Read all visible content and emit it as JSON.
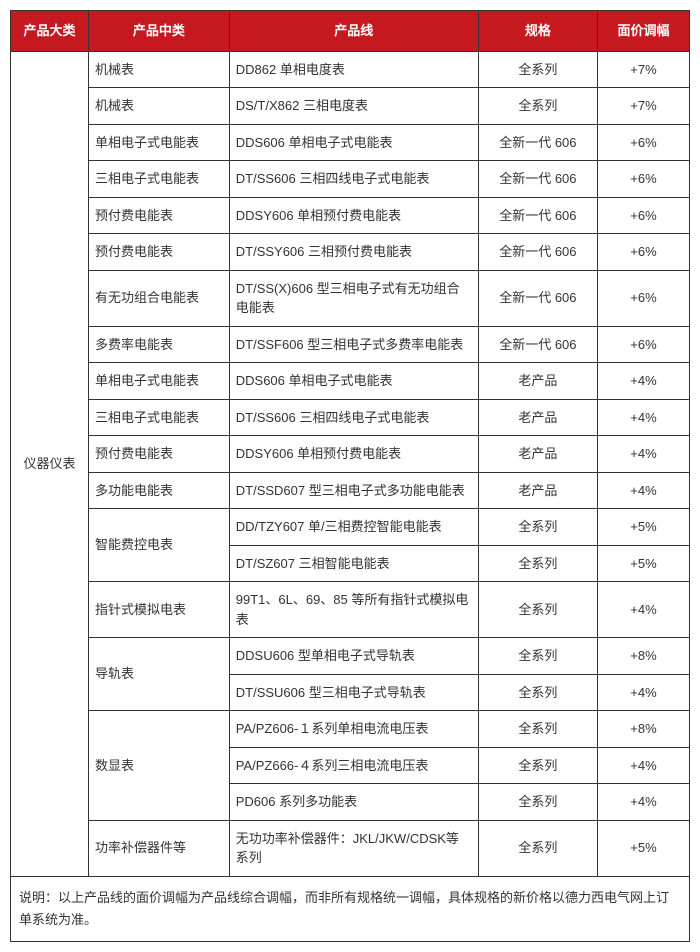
{
  "headers": {
    "category": "产品大类",
    "mid": "产品中类",
    "line": "产品线",
    "spec": "规格",
    "adj": "面价调幅"
  },
  "category_label": "仪器仪表",
  "rows": [
    {
      "mid": "机械表",
      "line": "DD862 单相电度表",
      "spec": "全系列",
      "adj": "+7%",
      "mid_rowspan": 1
    },
    {
      "mid": "机械表",
      "line": "DS/T/X862 三相电度表",
      "spec": "全系列",
      "adj": "+7%",
      "mid_rowspan": 1
    },
    {
      "mid": "单相电子式电能表",
      "line": "DDS606 单相电子式电能表",
      "spec": "全新一代 606",
      "adj": "+6%",
      "mid_rowspan": 1
    },
    {
      "mid": "三相电子式电能表",
      "line": "DT/SS606 三相四线电子式电能表",
      "spec": "全新一代 606",
      "adj": "+6%",
      "mid_rowspan": 1
    },
    {
      "mid": "预付费电能表",
      "line": "DDSY606 单相预付费电能表",
      "spec": "全新一代 606",
      "adj": "+6%",
      "mid_rowspan": 1
    },
    {
      "mid": "预付费电能表",
      "line": "DT/SSY606 三相预付费电能表",
      "spec": "全新一代 606",
      "adj": "+6%",
      "mid_rowspan": 1
    },
    {
      "mid": "有无功组合电能表",
      "line": "DT/SS(X)606 型三相电子式有无功组合电能表",
      "spec": "全新一代 606",
      "adj": "+6%",
      "mid_rowspan": 1
    },
    {
      "mid": "多费率电能表",
      "line": "DT/SSF606 型三相电子式多费率电能表",
      "spec": "全新一代 606",
      "adj": "+6%",
      "mid_rowspan": 1
    },
    {
      "mid": "单相电子式电能表",
      "line": "DDS606 单相电子式电能表",
      "spec": "老产品",
      "adj": "+4%",
      "mid_rowspan": 1
    },
    {
      "mid": "三相电子式电能表",
      "line": "DT/SS606 三相四线电子式电能表",
      "spec": "老产品",
      "adj": "+4%",
      "mid_rowspan": 1
    },
    {
      "mid": "预付费电能表",
      "line": "DDSY606 单相预付费电能表",
      "spec": "老产品",
      "adj": "+4%",
      "mid_rowspan": 1
    },
    {
      "mid": "多功能电能表",
      "line": "DT/SSD607 型三相电子式多功能电能表",
      "spec": "老产品",
      "adj": "+4%",
      "mid_rowspan": 1
    },
    {
      "mid": "智能费控电表",
      "line": "DD/TZY607 单/三相费控智能电能表",
      "spec": "全系列",
      "adj": "+5%",
      "mid_rowspan": 2
    },
    {
      "mid": null,
      "line": "DT/SZ607 三相智能电能表",
      "spec": "全系列",
      "adj": "+5%"
    },
    {
      "mid": "指针式模拟电表",
      "line": "99T1、6L、69、85 等所有指针式模拟电表",
      "spec": "全系列",
      "adj": "+4%",
      "mid_rowspan": 1
    },
    {
      "mid": "导轨表",
      "line": "DDSU606 型单相电子式导轨表",
      "spec": "全系列",
      "adj": "+8%",
      "mid_rowspan": 2
    },
    {
      "mid": null,
      "line": "DT/SSU606 型三相电子式导轨表",
      "spec": "全系列",
      "adj": "+4%"
    },
    {
      "mid": "数显表",
      "line": "PA/PZ606-１系列单相电流电压表",
      "spec": "全系列",
      "adj": "+8%",
      "mid_rowspan": 3
    },
    {
      "mid": null,
      "line": "PA/PZ666-４系列三相电流电压表",
      "spec": "全系列",
      "adj": "+4%"
    },
    {
      "mid": null,
      "line": "PD606 系列多功能表",
      "spec": "全系列",
      "adj": "+4%"
    },
    {
      "mid": "功率补偿器件等",
      "line": "无功功率补偿器件：JKL/JKW/CDSK等系列",
      "spec": "全系列",
      "adj": "+5%",
      "mid_rowspan": 1
    }
  ],
  "note": "说明：以上产品线的面价调幅为产品线综合调幅，而非所有规格统一调幅，具体规格的新价格以德力西电气网上订单系统为准。",
  "colors": {
    "header_bg": "#c5181f",
    "header_text": "#ffffff",
    "border": "#333333",
    "text": "#333333"
  }
}
